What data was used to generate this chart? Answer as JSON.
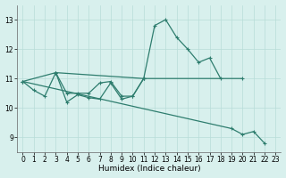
{
  "xlabel": "Humidex (Indice chaleur)",
  "xlim": [
    -0.5,
    23.5
  ],
  "ylim": [
    8.5,
    13.5
  ],
  "yticks": [
    9,
    10,
    11,
    12,
    13
  ],
  "xticks": [
    0,
    1,
    2,
    3,
    4,
    5,
    6,
    7,
    8,
    9,
    10,
    11,
    12,
    13,
    14,
    15,
    16,
    17,
    18,
    19,
    20,
    21,
    22,
    23
  ],
  "line_color": "#2e7d6e",
  "bg_color": "#d8f0ed",
  "grid_color": "#b8ddd8",
  "series": [
    {
      "x": [
        0,
        1,
        2,
        3,
        4,
        5,
        6,
        7,
        8,
        9,
        10,
        11,
        12,
        13,
        14,
        15,
        16,
        17,
        18
      ],
      "y": [
        10.9,
        10.6,
        10.4,
        11.2,
        10.5,
        10.5,
        10.5,
        10.85,
        10.9,
        10.4,
        10.4,
        11.0,
        12.8,
        13.0,
        12.4,
        12.0,
        11.55,
        11.7,
        11.0
      ]
    },
    {
      "x": [
        3,
        4,
        5,
        6,
        7,
        8,
        9,
        10,
        11
      ],
      "y": [
        11.2,
        10.2,
        10.45,
        10.35,
        10.3,
        10.85,
        10.3,
        10.4,
        11.0
      ]
    },
    {
      "x": [
        0,
        3,
        11,
        20
      ],
      "y": [
        10.9,
        11.2,
        11.0,
        11.0
      ]
    },
    {
      "x": [
        0,
        19,
        20,
        21,
        22
      ],
      "y": [
        10.9,
        9.3,
        9.1,
        9.2,
        8.8
      ]
    }
  ],
  "tick_fontsize": 5.5,
  "xlabel_fontsize": 6.5
}
